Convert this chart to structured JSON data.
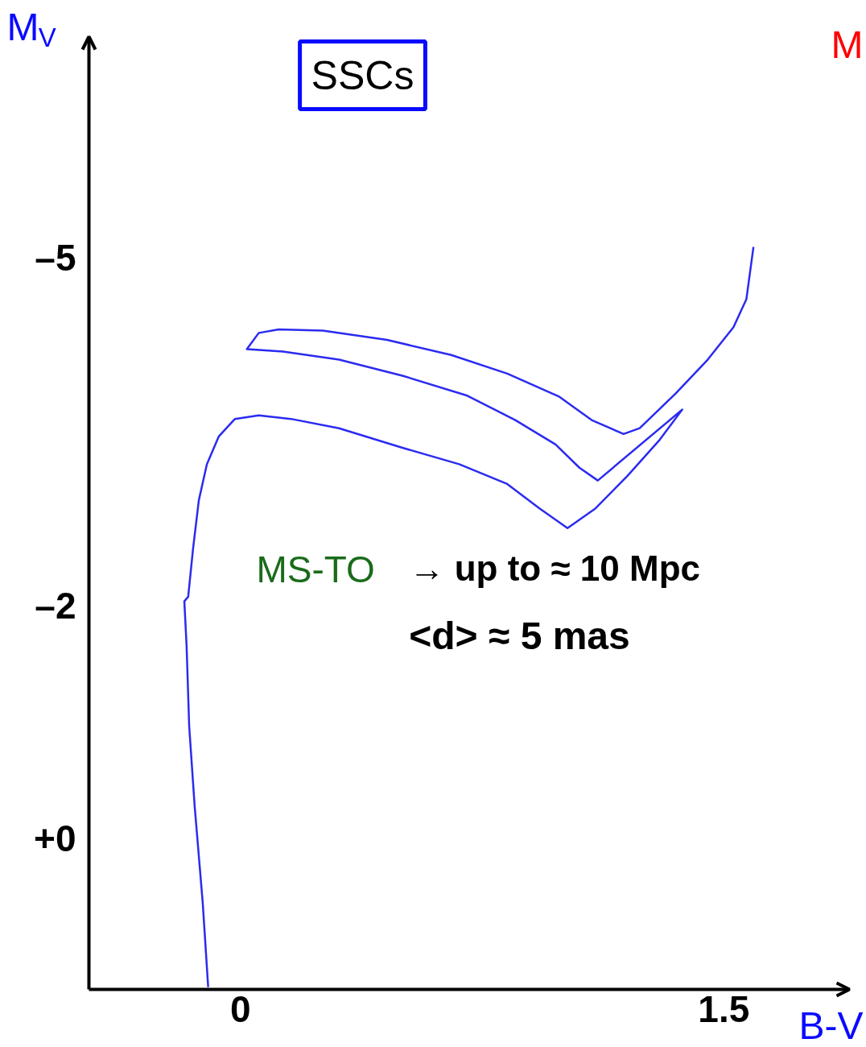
{
  "chart_data": {
    "type": "line",
    "title": "SSCs",
    "xlabel": "B-V",
    "ylabel": "M$_{V}$",
    "xlim": [
      -0.47,
      1.89
    ],
    "ylim": [
      1.3,
      -6.9
    ],
    "xticks": [
      0,
      1.5
    ],
    "yticks": [
      {
        "value": -5,
        "label": "–5"
      },
      {
        "value": -2,
        "label": "–2"
      },
      {
        "value": 0,
        "label": "+0"
      }
    ],
    "grid": false,
    "marker": "none",
    "line_style": "solid",
    "annotations": [
      "MS-TO",
      "→ up to ≈ 10 Mpc",
      "<d> ≈ 5 mas",
      "M"
    ],
    "series": [
      {
        "color": "#2b2bf0",
        "x": [
          -0.1,
          -0.117,
          -0.142,
          -0.159,
          -0.167,
          -0.174,
          -0.162,
          -0.147,
          -0.129,
          -0.104,
          -0.067,
          -0.017,
          0.057,
          0.157,
          0.306,
          0.505,
          0.679,
          0.828,
          0.928,
          1.015,
          1.102,
          1.201,
          1.301,
          1.371,
          1.109,
          1.052,
          0.978,
          0.853,
          0.704,
          0.505,
          0.306,
          0.132,
          0.02,
          0.057,
          0.119,
          0.256,
          0.455,
          0.654,
          0.828,
          0.99,
          1.09,
          1.189,
          1.239,
          1.351,
          1.45,
          1.53,
          1.57,
          1.592
        ],
        "values": [
          1.28,
          0.55,
          -0.28,
          -0.97,
          -1.66,
          -2.04,
          -2.08,
          -2.49,
          -2.91,
          -3.22,
          -3.46,
          -3.61,
          -3.64,
          -3.61,
          -3.53,
          -3.36,
          -3.22,
          -3.05,
          -2.84,
          -2.67,
          -2.84,
          -3.12,
          -3.43,
          -3.69,
          -3.08,
          -3.19,
          -3.39,
          -3.6,
          -3.81,
          -3.98,
          -4.12,
          -4.19,
          -4.21,
          -4.35,
          -4.38,
          -4.37,
          -4.29,
          -4.16,
          -4.0,
          -3.8,
          -3.6,
          -3.48,
          -3.53,
          -3.83,
          -4.12,
          -4.4,
          -4.64,
          -5.09
        ]
      }
    ]
  }
}
